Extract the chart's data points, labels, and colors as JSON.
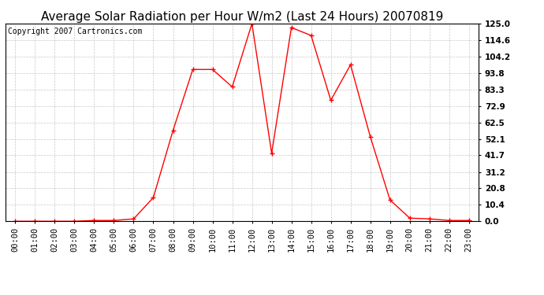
{
  "title": "Average Solar Radiation per Hour W/m2 (Last 24 Hours) 20070819",
  "copyright": "Copyright 2007 Cartronics.com",
  "hours": [
    0,
    1,
    2,
    3,
    4,
    5,
    6,
    7,
    8,
    9,
    10,
    11,
    12,
    13,
    14,
    15,
    16,
    17,
    18,
    19,
    20,
    21,
    22,
    23
  ],
  "hour_labels": [
    "00:00",
    "01:00",
    "02:00",
    "03:00",
    "04:00",
    "05:00",
    "06:00",
    "07:00",
    "08:00",
    "09:00",
    "10:00",
    "11:00",
    "12:00",
    "13:00",
    "14:00",
    "15:00",
    "16:00",
    "17:00",
    "18:00",
    "19:00",
    "20:00",
    "21:00",
    "22:00",
    "23:00"
  ],
  "values": [
    0.0,
    0.0,
    0.0,
    0.0,
    0.5,
    0.5,
    1.5,
    15.0,
    57.5,
    96.0,
    96.0,
    85.0,
    125.0,
    43.0,
    122.5,
    117.5,
    76.5,
    99.0,
    53.5,
    13.5,
    2.0,
    1.5,
    0.5,
    0.5
  ],
  "line_color": "#ff0000",
  "marker": "+",
  "marker_size": 4,
  "background_color": "#ffffff",
  "plot_bg_color": "#ffffff",
  "grid_color": "#c8c8c8",
  "ylim": [
    0.0,
    125.0
  ],
  "yticks": [
    0.0,
    10.4,
    20.8,
    31.2,
    41.7,
    52.1,
    62.5,
    72.9,
    83.3,
    93.8,
    104.2,
    114.6,
    125.0
  ],
  "title_fontsize": 11,
  "copyright_fontsize": 7,
  "tick_fontsize": 7.5
}
